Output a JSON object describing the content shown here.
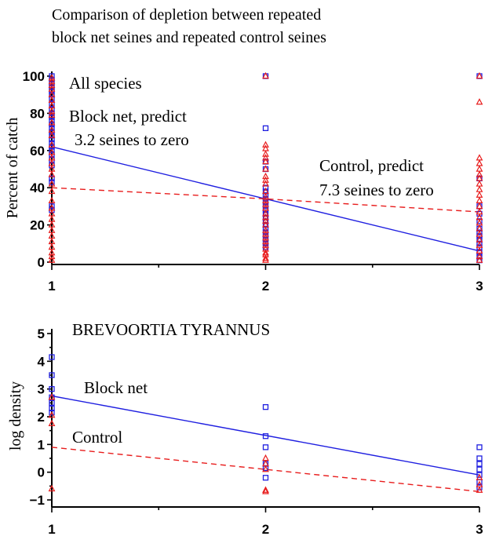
{
  "title_lines": [
    "Comparison of depletion between repeated",
    "block net seines and repeated control seines"
  ],
  "colors": {
    "block": "#1f1fe0",
    "control": "#e81c1c"
  },
  "chart_data": [
    {
      "type": "scatter",
      "ylabel": "Percent of catch",
      "xlim": [
        1,
        3
      ],
      "ylim": [
        0,
        100
      ],
      "xticks": [
        1,
        2,
        3
      ],
      "yticks": [
        0,
        20,
        40,
        60,
        80,
        100
      ],
      "xtick_labels": [
        "1",
        "2",
        "3"
      ],
      "ytick_labels": [
        "0",
        "20",
        "40",
        "60",
        "80",
        "100"
      ],
      "annotations": [
        "All species",
        "Block net, predict",
        "3.2 seines to zero",
        "Control, predict",
        "7.3 seines to zero"
      ],
      "series": [
        {
          "marker": "square",
          "color": "#1f1fe0",
          "points": [
            [
              1,
              100
            ],
            [
              1,
              98
            ],
            [
              1,
              96
            ],
            [
              1,
              94
            ],
            [
              1,
              92
            ],
            [
              1,
              90
            ],
            [
              1,
              88
            ],
            [
              1,
              85
            ],
            [
              1,
              82
            ],
            [
              1,
              80
            ],
            [
              1,
              78
            ],
            [
              1,
              76
            ],
            [
              1,
              74
            ],
            [
              1,
              72
            ],
            [
              1,
              70
            ],
            [
              1,
              68
            ],
            [
              1,
              66
            ],
            [
              1,
              64
            ],
            [
              1,
              62
            ],
            [
              1,
              60
            ],
            [
              1,
              58
            ],
            [
              1,
              55
            ],
            [
              1,
              52
            ],
            [
              1,
              45
            ],
            [
              1,
              43
            ],
            [
              1,
              30
            ],
            [
              1,
              28
            ],
            [
              2,
              100
            ],
            [
              2,
              72
            ],
            [
              2,
              54
            ],
            [
              2,
              50
            ],
            [
              2,
              40
            ],
            [
              2,
              38
            ],
            [
              2,
              36
            ],
            [
              2,
              34
            ],
            [
              2,
              32
            ],
            [
              2,
              30
            ],
            [
              2,
              28
            ],
            [
              2,
              26
            ],
            [
              2,
              24
            ],
            [
              2,
              22
            ],
            [
              2,
              20
            ],
            [
              2,
              18
            ],
            [
              2,
              16
            ],
            [
              2,
              14
            ],
            [
              2,
              12
            ],
            [
              2,
              10
            ],
            [
              2,
              8
            ],
            [
              3,
              100
            ],
            [
              3,
              45
            ],
            [
              3,
              30
            ],
            [
              3,
              26
            ],
            [
              3,
              22
            ],
            [
              3,
              18
            ],
            [
              3,
              16
            ],
            [
              3,
              14
            ],
            [
              3,
              12
            ],
            [
              3,
              10
            ],
            [
              3,
              8
            ],
            [
              3,
              5
            ],
            [
              3,
              3
            ],
            [
              3,
              1
            ]
          ]
        },
        {
          "marker": "triangle",
          "color": "#e81c1c",
          "points": [
            [
              1,
              99
            ],
            [
              1,
              97
            ],
            [
              1,
              95
            ],
            [
              1,
              93
            ],
            [
              1,
              90
            ],
            [
              1,
              87
            ],
            [
              1,
              84
            ],
            [
              1,
              81
            ],
            [
              1,
              79
            ],
            [
              1,
              75
            ],
            [
              1,
              71
            ],
            [
              1,
              68
            ],
            [
              1,
              63
            ],
            [
              1,
              59
            ],
            [
              1,
              56
            ],
            [
              1,
              53
            ],
            [
              1,
              50
            ],
            [
              1,
              47
            ],
            [
              1,
              42
            ],
            [
              1,
              38
            ],
            [
              1,
              33
            ],
            [
              1,
              29
            ],
            [
              1,
              26
            ],
            [
              1,
              23
            ],
            [
              1,
              20
            ],
            [
              1,
              17
            ],
            [
              1,
              14
            ],
            [
              1,
              11
            ],
            [
              1,
              8
            ],
            [
              1,
              5
            ],
            [
              1,
              3
            ],
            [
              1,
              1
            ],
            [
              2,
              100
            ],
            [
              2,
              63
            ],
            [
              2,
              61
            ],
            [
              2,
              58
            ],
            [
              2,
              56
            ],
            [
              2,
              54
            ],
            [
              2,
              50
            ],
            [
              2,
              46
            ],
            [
              2,
              44
            ],
            [
              2,
              42
            ],
            [
              2,
              38
            ],
            [
              2,
              35
            ],
            [
              2,
              33
            ],
            [
              2,
              31
            ],
            [
              2,
              29
            ],
            [
              2,
              26
            ],
            [
              2,
              24
            ],
            [
              2,
              22
            ],
            [
              2,
              20
            ],
            [
              2,
              17
            ],
            [
              2,
              15
            ],
            [
              2,
              13
            ],
            [
              2,
              11
            ],
            [
              2,
              9
            ],
            [
              2,
              7
            ],
            [
              2,
              5
            ],
            [
              2,
              4
            ],
            [
              2,
              2
            ],
            [
              2,
              1
            ],
            [
              3,
              100
            ],
            [
              3,
              86
            ],
            [
              3,
              56
            ],
            [
              3,
              53
            ],
            [
              3,
              50
            ],
            [
              3,
              47
            ],
            [
              3,
              45
            ],
            [
              3,
              42
            ],
            [
              3,
              39
            ],
            [
              3,
              36
            ],
            [
              3,
              33
            ],
            [
              3,
              30
            ],
            [
              3,
              27
            ],
            [
              3,
              24
            ],
            [
              3,
              21
            ],
            [
              3,
              18
            ],
            [
              3,
              15
            ],
            [
              3,
              12
            ],
            [
              3,
              9
            ],
            [
              3,
              6
            ],
            [
              3,
              3
            ],
            [
              3,
              1
            ]
          ]
        }
      ],
      "lines": [
        {
          "name": "Block net",
          "style": "solid",
          "color": "#1f1fe0",
          "x": [
            1,
            3
          ],
          "y": [
            62,
            6
          ]
        },
        {
          "name": "Control",
          "style": "dashed",
          "color": "#e81c1c",
          "x": [
            1,
            2,
            3
          ],
          "y": [
            40,
            34,
            27
          ]
        }
      ]
    },
    {
      "type": "scatter",
      "title": "BREVOORTIA TYRANNUS",
      "ylabel": "log density",
      "xlim": [
        1,
        3
      ],
      "ylim": [
        -1,
        5
      ],
      "xticks": [
        1,
        2,
        3
      ],
      "yticks": [
        -1,
        0,
        1,
        2,
        3,
        4,
        5
      ],
      "xtick_labels": [
        "1",
        "2",
        "3"
      ],
      "ytick_labels": [
        "−1",
        "0",
        "1",
        "2",
        "3",
        "4",
        "5"
      ],
      "annotations": [
        "Block net",
        "Control"
      ],
      "series": [
        {
          "marker": "square",
          "color": "#1f1fe0",
          "points": [
            [
              1,
              4.15
            ],
            [
              1,
              3.5
            ],
            [
              1,
              3.0
            ],
            [
              1,
              2.7
            ],
            [
              1,
              2.5
            ],
            [
              1,
              2.3
            ],
            [
              1,
              2.15
            ],
            [
              2,
              2.35
            ],
            [
              2,
              1.3
            ],
            [
              2,
              0.9
            ],
            [
              2,
              0.3
            ],
            [
              2,
              0.15
            ],
            [
              2,
              -0.2
            ],
            [
              3,
              0.9
            ],
            [
              3,
              0.5
            ],
            [
              3,
              0.3
            ],
            [
              3,
              0.1
            ],
            [
              3,
              -0.1
            ],
            [
              3,
              -0.35
            ],
            [
              3,
              -0.55
            ]
          ]
        },
        {
          "marker": "triangle",
          "color": "#e81c1c",
          "points": [
            [
              1,
              2.7
            ],
            [
              1,
              2.05
            ],
            [
              1,
              1.75
            ],
            [
              1,
              -0.6
            ],
            [
              2,
              0.5
            ],
            [
              2,
              0.3
            ],
            [
              2,
              0.1
            ],
            [
              2,
              -0.65
            ],
            [
              2,
              -0.7
            ],
            [
              3,
              -0.2
            ],
            [
              3,
              -0.45
            ],
            [
              3,
              -0.65
            ]
          ]
        }
      ],
      "lines": [
        {
          "name": "Block net",
          "style": "solid",
          "color": "#1f1fe0",
          "x": [
            1,
            3
          ],
          "y": [
            2.75,
            -0.1
          ]
        },
        {
          "name": "Control",
          "style": "dashed",
          "color": "#e81c1c",
          "x": [
            1,
            3
          ],
          "y": [
            0.9,
            -0.7
          ]
        }
      ]
    }
  ]
}
